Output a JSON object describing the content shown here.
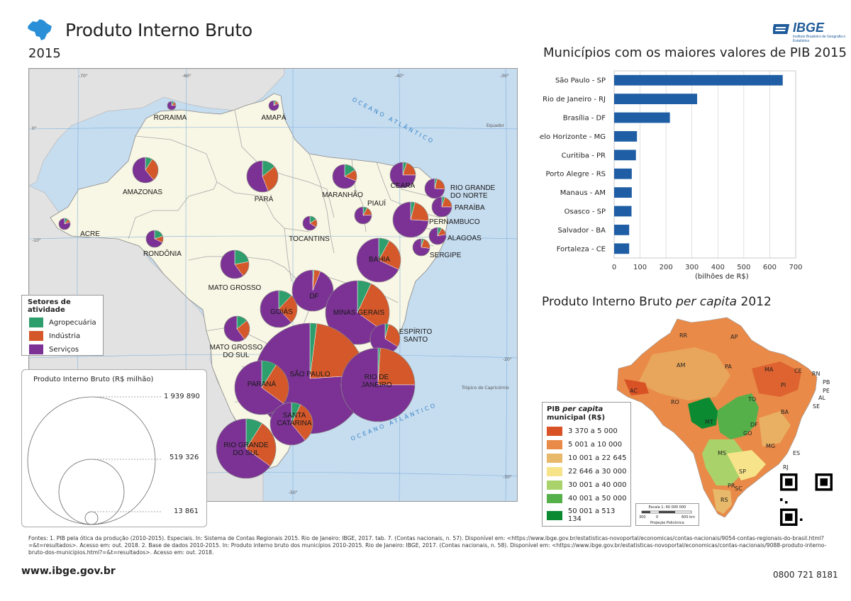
{
  "header": {
    "title": "Produto Interno Bruto",
    "year": "2015",
    "logo_text": "IBGE",
    "logo_sub": "Instituto Brasileiro de Geografia e Estatística"
  },
  "map": {
    "ocean_label_1": "OCEANO ATLÂNTICO",
    "ocean_label_2": "OCEANO ATLÂNTICO",
    "equator_label": "Equador",
    "capricorn_label": "Trópico de Capricórnio",
    "longitude_labels": [
      "-70°",
      "-60°",
      "-50°",
      "-40°",
      "-30°"
    ],
    "latitude_labels": [
      "0°",
      "-10°",
      "-20°",
      "-30°"
    ],
    "states": [
      {
        "name": "RORAIMA",
        "shares": [
          10,
          14,
          76
        ]
      },
      {
        "name": "AMAPÁ",
        "shares": [
          8,
          10,
          82
        ]
      },
      {
        "name": "AMAZONAS",
        "shares": [
          9,
          30,
          61
        ]
      },
      {
        "name": "PARÁ",
        "shares": [
          14,
          30,
          56
        ]
      },
      {
        "name": "MARANHÃO",
        "shares": [
          16,
          15,
          69
        ]
      },
      {
        "name": "CEARÁ",
        "shares": [
          5,
          20,
          75
        ]
      },
      {
        "name": "RIO GRANDE DO NORTE",
        "shares": [
          4,
          22,
          74
        ]
      },
      {
        "name": "PARAÍBA",
        "shares": [
          5,
          20,
          75
        ]
      },
      {
        "name": "PIAUÍ",
        "shares": [
          8,
          16,
          76
        ]
      },
      {
        "name": "PERNAMBUCO",
        "shares": [
          4,
          22,
          74
        ]
      },
      {
        "name": "ALAGOAS",
        "shares": [
          8,
          14,
          78
        ]
      },
      {
        "name": "SERGIPE",
        "shares": [
          5,
          22,
          73
        ]
      },
      {
        "name": "ACRE",
        "shares": [
          10,
          10,
          80
        ]
      },
      {
        "name": "RONDÔNIA",
        "shares": [
          20,
          12,
          68
        ]
      },
      {
        "name": "TOCANTINS",
        "shares": [
          16,
          18,
          66
        ]
      },
      {
        "name": "BAHIA",
        "shares": [
          8,
          24,
          68
        ]
      },
      {
        "name": "MATO GROSSO",
        "shares": [
          22,
          18,
          60
        ]
      },
      {
        "name": "DF",
        "shares": [
          1,
          5,
          94
        ]
      },
      {
        "name": "GOIÁS",
        "shares": [
          12,
          26,
          62
        ]
      },
      {
        "name": "MINAS GERAIS",
        "shares": [
          7,
          28,
          65
        ]
      },
      {
        "name": "ESPÍRITO SANTO",
        "shares": [
          4,
          30,
          66
        ]
      },
      {
        "name": "MATO GROSSO DO SUL",
        "shares": [
          14,
          26,
          60
        ]
      },
      {
        "name": "SÃO PAULO",
        "shares": [
          2,
          22,
          76
        ]
      },
      {
        "name": "RIO DE JANEIRO",
        "shares": [
          1,
          24,
          75
        ]
      },
      {
        "name": "PARANÁ",
        "shares": [
          9,
          26,
          65
        ]
      },
      {
        "name": "SANTA CATARINA",
        "shares": [
          7,
          32,
          61
        ]
      },
      {
        "name": "RIO GRANDE DO SUL",
        "shares": [
          9,
          26,
          65
        ]
      }
    ]
  },
  "legend_sectors": {
    "title": "Setores de atividade",
    "items": [
      {
        "label": "Agropecuária",
        "color": "#2e9e6d"
      },
      {
        "label": "Indústria",
        "color": "#d4582a"
      },
      {
        "label": "Serviços",
        "color": "#7b3294"
      }
    ]
  },
  "legend_size": {
    "title": "Produto Interno Bruto (R$ milhão)",
    "values": [
      "1 939 890",
      "519 326",
      "13 861"
    ]
  },
  "bar_section": {
    "title": "Municípios com os maiores valores de PIB 2015",
    "xlabel": "(bilhões de R$)",
    "color": "#1f5ea4"
  },
  "chart_data": {
    "type": "bar",
    "orientation": "horizontal",
    "title": "Municípios com os maiores valores de PIB 2015",
    "xlabel": "(bilhões de R$)",
    "xlim": [
      0,
      700
    ],
    "xticks": [
      0,
      100,
      200,
      300,
      400,
      500,
      600,
      700
    ],
    "grid": true,
    "categories": [
      "São Paulo - SP",
      "Rio de Janeiro - RJ",
      "Brasília - DF",
      "Belo Horizonte - MG",
      "Curitiba - PR",
      "Porto Alegre - RS",
      "Manaus - AM",
      "Osasco - SP",
      "Salvador - BA",
      "Fortaleza - CE"
    ],
    "values": [
      650,
      320,
      215,
      88,
      84,
      68,
      68,
      67,
      58,
      58
    ]
  },
  "per_capita": {
    "title_a": "Produto Interno Bruto",
    "title_b": "per capita",
    "title_c": "2012",
    "legend_title_a": "PIB",
    "legend_title_b": "per capita",
    "legend_title_c": "municipal (R$)",
    "classes": [
      {
        "label": "3 370 a 5 000",
        "color": "#d95226"
      },
      {
        "label": "5 001 a 10 000",
        "color": "#e98a48"
      },
      {
        "label": "10 001 a 22 645",
        "color": "#e8b96a"
      },
      {
        "label": "22 646  a 30 000",
        "color": "#f7e48a"
      },
      {
        "label": "30 001 a 40 000",
        "color": "#a9d36a"
      },
      {
        "label": "40 001 a 50 000",
        "color": "#55b04a"
      },
      {
        "label": "50 001 a 513 134",
        "color": "#0b8a32"
      }
    ],
    "state_codes": [
      "RR",
      "AP",
      "AM",
      "PA",
      "MA",
      "CE",
      "RN",
      "PB",
      "PE",
      "AL",
      "SE",
      "PI",
      "TO",
      "BA",
      "AC",
      "RO",
      "MT",
      "GO",
      "DF",
      "MG",
      "ES",
      "MS",
      "SP",
      "RJ",
      "PR",
      "SC",
      "RS"
    ],
    "scale_title": "Escala 1: 60 000 000",
    "scale_ticks": [
      "300",
      "0",
      "600 km"
    ],
    "projection": "Projeção Policônica"
  },
  "footer": {
    "sources": "Fontes: 1. PIB pela ótica da produção (2010-2015). Especiais. In: Sistema de Contas Regionais 2015. Rio de Janeiro: IBGE, 2017. tab. 7. (Contas nacionais, n. 57). Disponível em: <https://www.ibge.gov.br/estatisticas-novoportal/economicas/contas-nacionais/9054-contas-regionais-do-brasil.html?=&t=resultados>. Acesso em: out. 2018. 2. Base de dados 2010-2015. In: Produto interno bruto dos municípios 2010-2015. Rio de Janeiro: IBGE, 2017. (Contas nacionais, n. 58). Disponível em: <https://www.ibge.gov.br/estatisticas-novoportal/economicas/contas-nacionais/9088-produto-interno-bruto-dos-municipios.html?=&t=resultados>. Acesso em: out. 2018.",
    "url": "www.ibge.gov.br",
    "phone": "0800 721 8181"
  }
}
